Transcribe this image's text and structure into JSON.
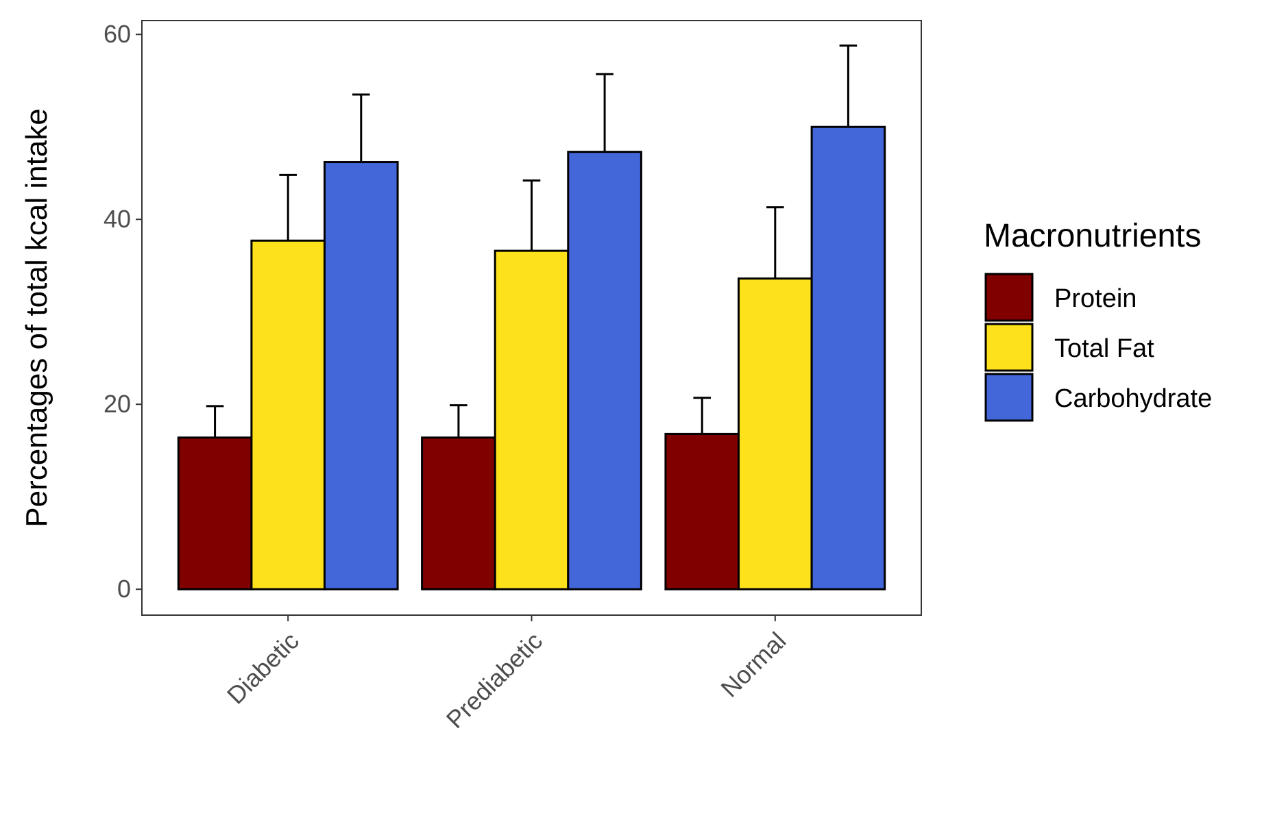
{
  "chart_data": {
    "type": "bar",
    "title": "",
    "xlabel": "",
    "ylabel": "Percentages of total kcal intake",
    "ylim": [
      -2.8,
      61.5
    ],
    "yticks": [
      0,
      20,
      40,
      60
    ],
    "grid": false,
    "legend_position": "right",
    "legend_title": "Macronutrients",
    "categories": [
      "Diabetic",
      "Prediabetic",
      "Normal"
    ],
    "series": [
      {
        "name": "Protein",
        "color": "#800000",
        "values": [
          16.4,
          16.4,
          16.8
        ],
        "error_upper": [
          19.8,
          19.9,
          20.7
        ]
      },
      {
        "name": "Total Fat",
        "color": "#FDE11A",
        "values": [
          37.7,
          36.6,
          33.6
        ],
        "error_upper": [
          44.8,
          44.2,
          41.3
        ]
      },
      {
        "name": "Carbohydrate",
        "color": "#4366D9",
        "values": [
          46.2,
          47.3,
          50.0
        ],
        "error_upper": [
          53.5,
          55.7,
          58.8
        ]
      }
    ]
  }
}
